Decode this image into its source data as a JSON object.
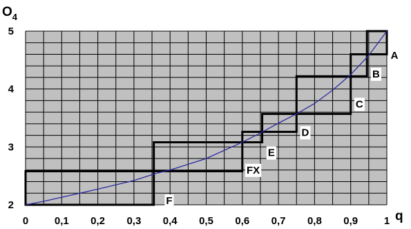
{
  "chart_data": {
    "type": "line",
    "title": "",
    "xlabel": "q",
    "ylabel_main": "O",
    "ylabel_sub": "4",
    "xlim": [
      0,
      1
    ],
    "ylim": [
      2,
      5
    ],
    "grid": true,
    "x_ticks": [
      {
        "v": 0,
        "label": "0"
      },
      {
        "v": 0.1,
        "label": "0,1"
      },
      {
        "v": 0.2,
        "label": "0,2"
      },
      {
        "v": 0.3,
        "label": "0,3"
      },
      {
        "v": 0.4,
        "label": "0,4"
      },
      {
        "v": 0.5,
        "label": "0,5"
      },
      {
        "v": 0.6,
        "label": "0,6"
      },
      {
        "v": 0.7,
        "label": "0,7"
      },
      {
        "v": 0.8,
        "label": "0,8"
      },
      {
        "v": 0.9,
        "label": "0,9"
      },
      {
        "v": 1,
        "label": "1"
      }
    ],
    "y_ticks": [
      {
        "v": 2,
        "label": "2"
      },
      {
        "v": 3,
        "label": "3"
      },
      {
        "v": 4,
        "label": "4"
      },
      {
        "v": 5,
        "label": "5"
      }
    ],
    "curve": {
      "color": "#2a2aa0",
      "x": [
        0,
        0.05,
        0.1,
        0.2,
        0.3,
        0.36,
        0.4,
        0.5,
        0.6,
        0.65,
        0.7,
        0.75,
        0.8,
        0.85,
        0.9,
        0.95,
        1.0
      ],
      "y": [
        2.0,
        2.06,
        2.13,
        2.27,
        2.42,
        2.54,
        2.6,
        2.8,
        3.08,
        3.24,
        3.41,
        3.57,
        3.75,
        3.98,
        4.25,
        4.58,
        5.0
      ]
    },
    "rectangles": [
      {
        "x0": 0.0,
        "x1": 0.355,
        "y0": 2.0,
        "y1": 2.58
      },
      {
        "x0": 0.355,
        "x1": 0.6,
        "y0": 2.58,
        "y1": 3.08
      },
      {
        "x0": 0.6,
        "x1": 0.655,
        "y0": 3.08,
        "y1": 3.26
      },
      {
        "x0": 0.655,
        "x1": 0.75,
        "y0": 3.26,
        "y1": 3.57
      },
      {
        "x0": 0.75,
        "x1": 0.9,
        "y0": 3.57,
        "y1": 4.22
      },
      {
        "x0": 0.9,
        "x1": 0.945,
        "y0": 4.22,
        "y1": 4.6
      },
      {
        "x0": 0.945,
        "x1": 1.0,
        "y0": 4.6,
        "y1": 5.0
      }
    ],
    "box_labels": [
      {
        "text": "F",
        "x": 0.385,
        "y": 2.19
      },
      {
        "text": "FX",
        "x": 0.608,
        "y": 2.72
      },
      {
        "text": "E",
        "x": 0.667,
        "y": 3.02
      },
      {
        "text": "D",
        "x": 0.76,
        "y": 3.37
      },
      {
        "text": "C",
        "x": 0.91,
        "y": 3.86
      },
      {
        "text": "B",
        "x": 0.956,
        "y": 4.38
      },
      {
        "text": "A",
        "x": 1.007,
        "y": 4.7
      }
    ]
  }
}
